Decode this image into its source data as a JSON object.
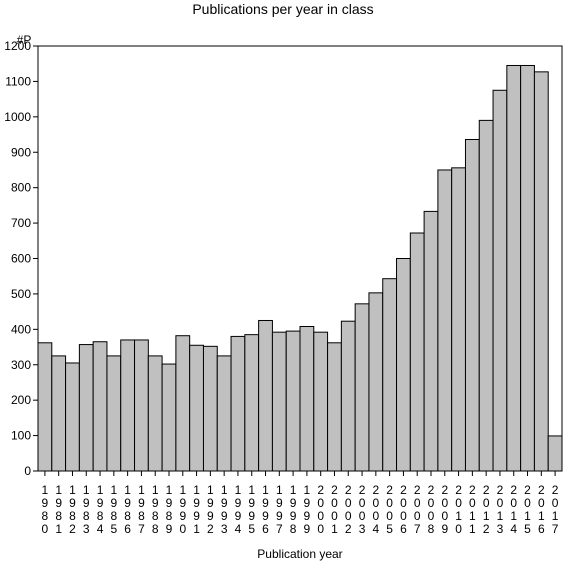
{
  "chart_data": {
    "type": "bar",
    "title": "Publications per year in class",
    "ylabel": "#P",
    "xlabel": "Publication year",
    "ylim": [
      0,
      1200
    ],
    "yticks": [
      0,
      100,
      200,
      300,
      400,
      500,
      600,
      700,
      800,
      900,
      1000,
      1100,
      1200
    ],
    "grid": false,
    "categories": [
      "1980",
      "1981",
      "1982",
      "1983",
      "1984",
      "1985",
      "1986",
      "1987",
      "1988",
      "1989",
      "1990",
      "1991",
      "1992",
      "1993",
      "1994",
      "1995",
      "1996",
      "1997",
      "1998",
      "1999",
      "2000",
      "2001",
      "2002",
      "2003",
      "2004",
      "2005",
      "2006",
      "2007",
      "2008",
      "2009",
      "2010",
      "2011",
      "2012",
      "2013",
      "2014",
      "2015",
      "2016",
      "2017"
    ],
    "values": [
      362,
      325,
      305,
      357,
      365,
      325,
      370,
      370,
      325,
      302,
      382,
      355,
      352,
      325,
      380,
      385,
      425,
      392,
      395,
      408,
      392,
      362,
      423,
      472,
      503,
      543,
      600,
      672,
      733,
      850,
      856,
      936,
      990,
      1075,
      1145,
      1145,
      1127,
      99
    ],
    "bar_color": "#c0c0c0"
  }
}
